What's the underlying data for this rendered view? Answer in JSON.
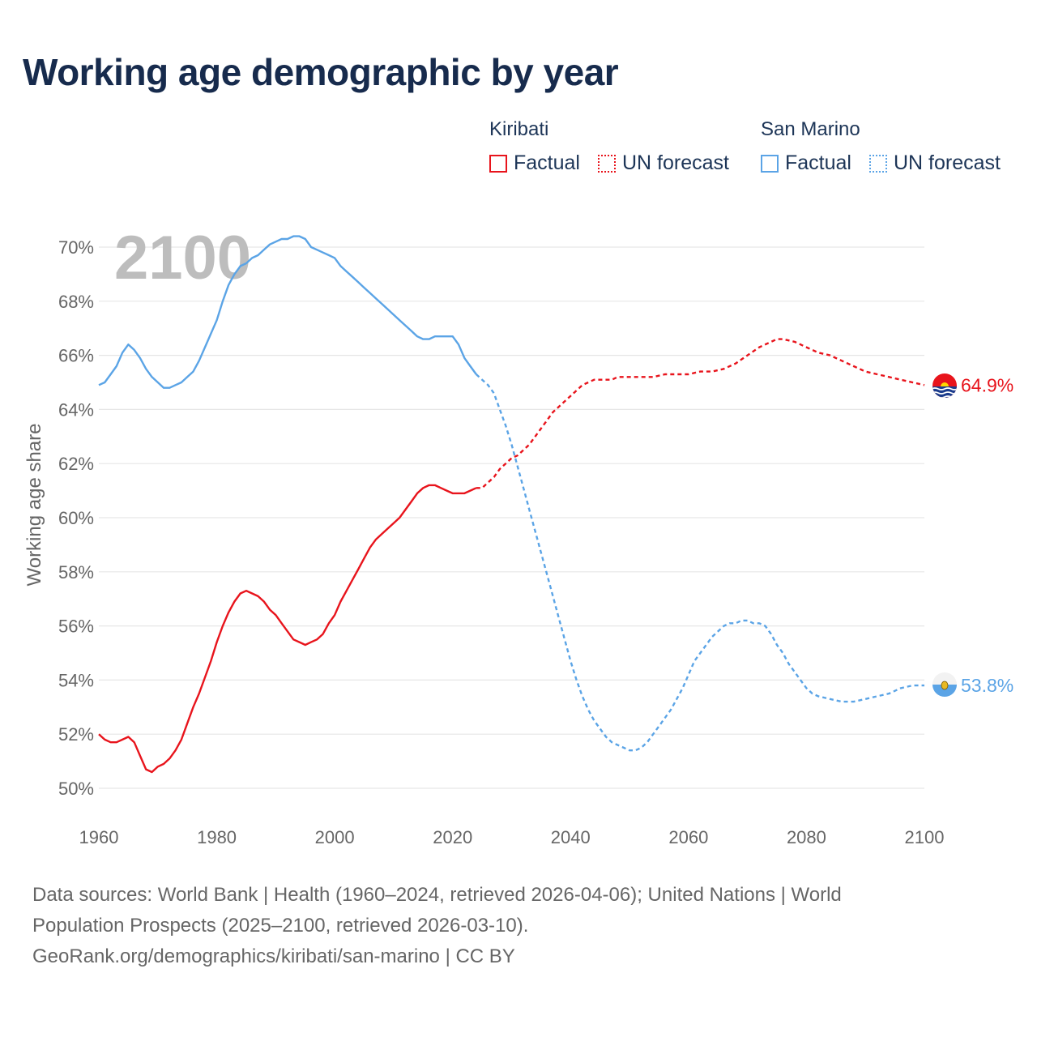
{
  "title": "Working age demographic by year",
  "legend": {
    "groups": [
      {
        "name": "Kiribati",
        "color": "#e8141c",
        "items": [
          {
            "label": "Factual",
            "style": "solid"
          },
          {
            "label": "UN forecast",
            "style": "dotted"
          }
        ]
      },
      {
        "name": "San Marino",
        "color": "#5ba4e6",
        "items": [
          {
            "label": "Factual",
            "style": "solid"
          },
          {
            "label": "UN forecast",
            "style": "dotted"
          }
        ]
      }
    ]
  },
  "footer": {
    "line1": "Data sources: World Bank | Health (1960–2024, retrieved 2026-04-06); United Nations | World",
    "line2": "Population Prospects (2025–2100, retrieved 2026-03-10).",
    "line3": "GeoRank.org/demographics/kiribati/san-marino | CC BY"
  },
  "chart_data": {
    "type": "line",
    "title": "Working age demographic by year",
    "xlabel": "",
    "ylabel": "Working age share",
    "year_watermark": "2100",
    "xlim": [
      1960,
      2100
    ],
    "ylim": [
      50,
      70.5
    ],
    "grid": true,
    "x_ticks": [
      1960,
      1980,
      2000,
      2020,
      2040,
      2060,
      2080,
      2100
    ],
    "x_tick_labels": [
      "1960",
      "1980",
      "2000",
      "2020",
      "2040",
      "2060",
      "2080",
      "2100"
    ],
    "y_ticks": [
      50,
      52,
      54,
      56,
      58,
      60,
      62,
      64,
      66,
      68,
      70
    ],
    "y_tick_labels": [
      "50%",
      "52%",
      "54%",
      "56%",
      "58%",
      "60%",
      "62%",
      "64%",
      "66%",
      "68%",
      "70%"
    ],
    "series": [
      {
        "name": "Kiribati",
        "color": "#e8141c",
        "end_label": "64.9%",
        "factual": [
          [
            1960,
            52.0
          ],
          [
            1961,
            51.8
          ],
          [
            1962,
            51.7
          ],
          [
            1963,
            51.7
          ],
          [
            1964,
            51.8
          ],
          [
            1965,
            51.9
          ],
          [
            1966,
            51.7
          ],
          [
            1967,
            51.2
          ],
          [
            1968,
            50.7
          ],
          [
            1969,
            50.6
          ],
          [
            1970,
            50.8
          ],
          [
            1971,
            50.9
          ],
          [
            1972,
            51.1
          ],
          [
            1973,
            51.4
          ],
          [
            1974,
            51.8
          ],
          [
            1975,
            52.4
          ],
          [
            1976,
            53.0
          ],
          [
            1977,
            53.5
          ],
          [
            1978,
            54.1
          ],
          [
            1979,
            54.7
          ],
          [
            1980,
            55.4
          ],
          [
            1981,
            56.0
          ],
          [
            1982,
            56.5
          ],
          [
            1983,
            56.9
          ],
          [
            1984,
            57.2
          ],
          [
            1985,
            57.3
          ],
          [
            1986,
            57.2
          ],
          [
            1987,
            57.1
          ],
          [
            1988,
            56.9
          ],
          [
            1989,
            56.6
          ],
          [
            1990,
            56.4
          ],
          [
            1991,
            56.1
          ],
          [
            1992,
            55.8
          ],
          [
            1993,
            55.5
          ],
          [
            1994,
            55.4
          ],
          [
            1995,
            55.3
          ],
          [
            1996,
            55.4
          ],
          [
            1997,
            55.5
          ],
          [
            1998,
            55.7
          ],
          [
            1999,
            56.1
          ],
          [
            2000,
            56.4
          ],
          [
            2001,
            56.9
          ],
          [
            2002,
            57.3
          ],
          [
            2003,
            57.7
          ],
          [
            2004,
            58.1
          ],
          [
            2005,
            58.5
          ],
          [
            2006,
            58.9
          ],
          [
            2007,
            59.2
          ],
          [
            2008,
            59.4
          ],
          [
            2009,
            59.6
          ],
          [
            2010,
            59.8
          ],
          [
            2011,
            60.0
          ],
          [
            2012,
            60.3
          ],
          [
            2013,
            60.6
          ],
          [
            2014,
            60.9
          ],
          [
            2015,
            61.1
          ],
          [
            2016,
            61.2
          ],
          [
            2017,
            61.2
          ],
          [
            2018,
            61.1
          ],
          [
            2019,
            61.0
          ],
          [
            2020,
            60.9
          ],
          [
            2021,
            60.9
          ],
          [
            2022,
            60.9
          ],
          [
            2023,
            61.0
          ],
          [
            2024,
            61.1
          ]
        ],
        "forecast": [
          [
            2024,
            61.1
          ],
          [
            2025,
            61.1
          ],
          [
            2026,
            61.3
          ],
          [
            2027,
            61.5
          ],
          [
            2028,
            61.8
          ],
          [
            2029,
            62.0
          ],
          [
            2030,
            62.2
          ],
          [
            2031,
            62.3
          ],
          [
            2032,
            62.5
          ],
          [
            2033,
            62.7
          ],
          [
            2034,
            63.0
          ],
          [
            2035,
            63.3
          ],
          [
            2036,
            63.6
          ],
          [
            2037,
            63.9
          ],
          [
            2038,
            64.1
          ],
          [
            2039,
            64.3
          ],
          [
            2040,
            64.5
          ],
          [
            2041,
            64.7
          ],
          [
            2042,
            64.9
          ],
          [
            2043,
            65.0
          ],
          [
            2044,
            65.1
          ],
          [
            2045,
            65.1
          ],
          [
            2046,
            65.1
          ],
          [
            2047,
            65.1
          ],
          [
            2048,
            65.2
          ],
          [
            2049,
            65.2
          ],
          [
            2050,
            65.2
          ],
          [
            2052,
            65.2
          ],
          [
            2054,
            65.2
          ],
          [
            2056,
            65.3
          ],
          [
            2058,
            65.3
          ],
          [
            2060,
            65.3
          ],
          [
            2062,
            65.4
          ],
          [
            2064,
            65.4
          ],
          [
            2066,
            65.5
          ],
          [
            2068,
            65.7
          ],
          [
            2070,
            66.0
          ],
          [
            2072,
            66.3
          ],
          [
            2074,
            66.5
          ],
          [
            2075,
            66.6
          ],
          [
            2076,
            66.6
          ],
          [
            2078,
            66.5
          ],
          [
            2080,
            66.3
          ],
          [
            2082,
            66.1
          ],
          [
            2084,
            66.0
          ],
          [
            2086,
            65.8
          ],
          [
            2088,
            65.6
          ],
          [
            2090,
            65.4
          ],
          [
            2092,
            65.3
          ],
          [
            2094,
            65.2
          ],
          [
            2096,
            65.1
          ],
          [
            2098,
            65.0
          ],
          [
            2100,
            64.9
          ]
        ]
      },
      {
        "name": "San Marino",
        "color": "#5ba4e6",
        "end_label": "53.8%",
        "factual": [
          [
            1960,
            64.9
          ],
          [
            1961,
            65.0
          ],
          [
            1962,
            65.3
          ],
          [
            1963,
            65.6
          ],
          [
            1964,
            66.1
          ],
          [
            1965,
            66.4
          ],
          [
            1966,
            66.2
          ],
          [
            1967,
            65.9
          ],
          [
            1968,
            65.5
          ],
          [
            1969,
            65.2
          ],
          [
            1970,
            65.0
          ],
          [
            1971,
            64.8
          ],
          [
            1972,
            64.8
          ],
          [
            1973,
            64.9
          ],
          [
            1974,
            65.0
          ],
          [
            1975,
            65.2
          ],
          [
            1976,
            65.4
          ],
          [
            1977,
            65.8
          ],
          [
            1978,
            66.3
          ],
          [
            1979,
            66.8
          ],
          [
            1980,
            67.3
          ],
          [
            1981,
            68.0
          ],
          [
            1982,
            68.6
          ],
          [
            1983,
            69.0
          ],
          [
            1984,
            69.3
          ],
          [
            1985,
            69.4
          ],
          [
            1986,
            69.6
          ],
          [
            1987,
            69.7
          ],
          [
            1988,
            69.9
          ],
          [
            1989,
            70.1
          ],
          [
            1990,
            70.2
          ],
          [
            1991,
            70.3
          ],
          [
            1992,
            70.3
          ],
          [
            1993,
            70.4
          ],
          [
            1994,
            70.4
          ],
          [
            1995,
            70.3
          ],
          [
            1996,
            70.0
          ],
          [
            1997,
            69.9
          ],
          [
            1998,
            69.8
          ],
          [
            1999,
            69.7
          ],
          [
            2000,
            69.6
          ],
          [
            2001,
            69.3
          ],
          [
            2002,
            69.1
          ],
          [
            2003,
            68.9
          ],
          [
            2004,
            68.7
          ],
          [
            2005,
            68.5
          ],
          [
            2006,
            68.3
          ],
          [
            2007,
            68.1
          ],
          [
            2008,
            67.9
          ],
          [
            2009,
            67.7
          ],
          [
            2010,
            67.5
          ],
          [
            2011,
            67.3
          ],
          [
            2012,
            67.1
          ],
          [
            2013,
            66.9
          ],
          [
            2014,
            66.7
          ],
          [
            2015,
            66.6
          ],
          [
            2016,
            66.6
          ],
          [
            2017,
            66.7
          ],
          [
            2018,
            66.7
          ],
          [
            2019,
            66.7
          ],
          [
            2020,
            66.7
          ],
          [
            2021,
            66.4
          ],
          [
            2022,
            65.9
          ],
          [
            2023,
            65.6
          ],
          [
            2024,
            65.3
          ]
        ],
        "forecast": [
          [
            2024,
            65.3
          ],
          [
            2025,
            65.1
          ],
          [
            2026,
            64.9
          ],
          [
            2027,
            64.6
          ],
          [
            2028,
            64.0
          ],
          [
            2029,
            63.4
          ],
          [
            2030,
            62.7
          ],
          [
            2031,
            61.9
          ],
          [
            2032,
            61.1
          ],
          [
            2033,
            60.3
          ],
          [
            2034,
            59.5
          ],
          [
            2035,
            58.7
          ],
          [
            2036,
            57.9
          ],
          [
            2037,
            57.1
          ],
          [
            2038,
            56.3
          ],
          [
            2039,
            55.5
          ],
          [
            2040,
            54.7
          ],
          [
            2041,
            54.0
          ],
          [
            2042,
            53.4
          ],
          [
            2043,
            52.9
          ],
          [
            2044,
            52.5
          ],
          [
            2045,
            52.2
          ],
          [
            2046,
            51.9
          ],
          [
            2047,
            51.7
          ],
          [
            2048,
            51.6
          ],
          [
            2049,
            51.5
          ],
          [
            2050,
            51.4
          ],
          [
            2051,
            51.4
          ],
          [
            2052,
            51.5
          ],
          [
            2053,
            51.7
          ],
          [
            2054,
            52.0
          ],
          [
            2055,
            52.3
          ],
          [
            2056,
            52.6
          ],
          [
            2057,
            52.9
          ],
          [
            2058,
            53.3
          ],
          [
            2059,
            53.7
          ],
          [
            2060,
            54.2
          ],
          [
            2061,
            54.7
          ],
          [
            2062,
            55.0
          ],
          [
            2063,
            55.3
          ],
          [
            2064,
            55.6
          ],
          [
            2065,
            55.8
          ],
          [
            2066,
            56.0
          ],
          [
            2067,
            56.1
          ],
          [
            2068,
            56.1
          ],
          [
            2069,
            56.2
          ],
          [
            2070,
            56.2
          ],
          [
            2071,
            56.1
          ],
          [
            2072,
            56.1
          ],
          [
            2073,
            56.0
          ],
          [
            2074,
            55.7
          ],
          [
            2075,
            55.3
          ],
          [
            2076,
            55.0
          ],
          [
            2077,
            54.6
          ],
          [
            2078,
            54.3
          ],
          [
            2079,
            54.0
          ],
          [
            2080,
            53.7
          ],
          [
            2081,
            53.5
          ],
          [
            2082,
            53.4
          ],
          [
            2084,
            53.3
          ],
          [
            2086,
            53.2
          ],
          [
            2088,
            53.2
          ],
          [
            2090,
            53.3
          ],
          [
            2092,
            53.4
          ],
          [
            2094,
            53.5
          ],
          [
            2096,
            53.7
          ],
          [
            2098,
            53.8
          ],
          [
            2100,
            53.8
          ]
        ]
      }
    ]
  }
}
